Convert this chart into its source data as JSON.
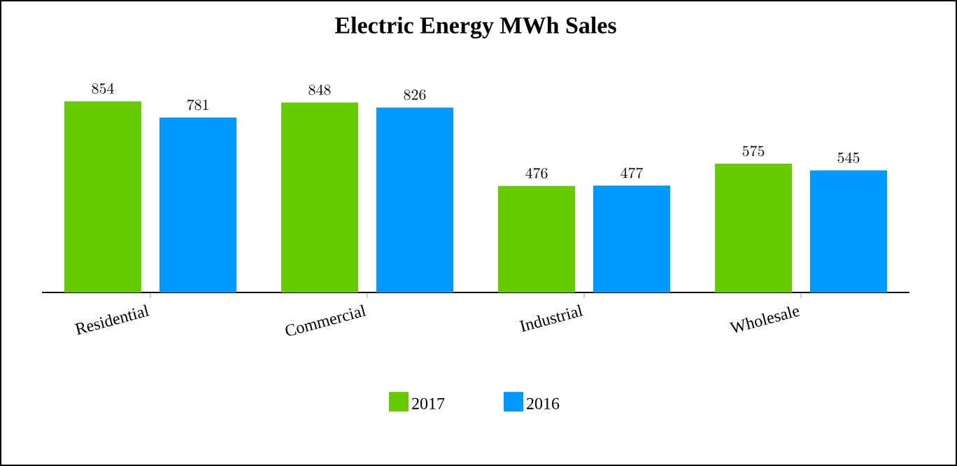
{
  "chart_data": {
    "type": "bar",
    "title": "Electric Energy MWh Sales",
    "categories": [
      "Residential",
      "Commercial",
      "Industrial",
      "Wholesale"
    ],
    "series": [
      {
        "name": "2017",
        "color": "#66cc00",
        "values": [
          854,
          848,
          476,
          575
        ]
      },
      {
        "name": "2016",
        "color": "#0099ff",
        "values": [
          781,
          826,
          477,
          545
        ]
      }
    ],
    "data_labels": true,
    "legend": "bottom"
  }
}
